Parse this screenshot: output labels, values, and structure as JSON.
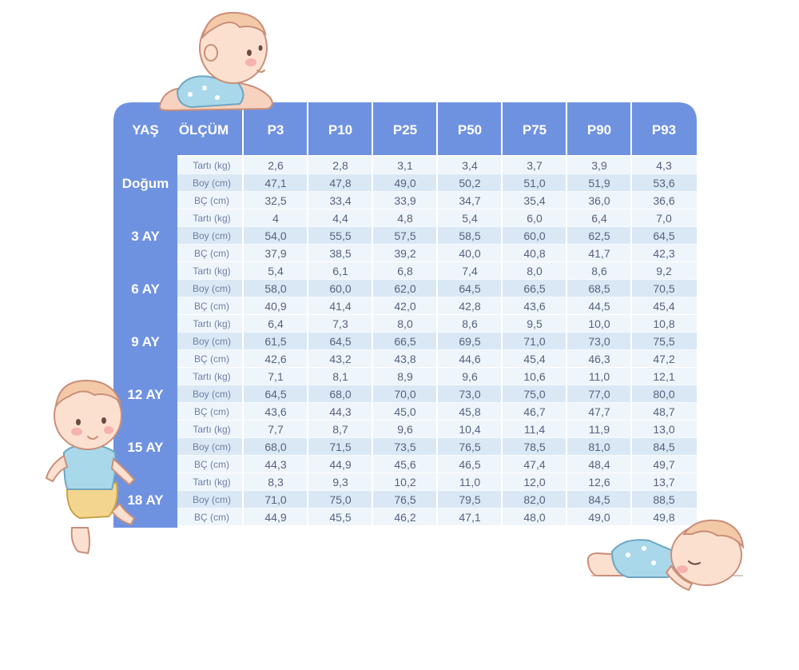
{
  "chart_data": {
    "type": "table",
    "header": {
      "age": "YAŞ",
      "measure": "ÖLÇÜM",
      "percentiles": [
        "P3",
        "P10",
        "P25",
        "P50",
        "P75",
        "P90",
        "P93"
      ]
    },
    "groups": [
      {
        "age": "Doğum",
        "rows": [
          {
            "label": "Tartı (kg)",
            "values": [
              "2,6",
              "2,8",
              "3,1",
              "3,4",
              "3,7",
              "3,9",
              "4,3"
            ]
          },
          {
            "label": "Boy (cm)",
            "values": [
              "47,1",
              "47,8",
              "49,0",
              "50,2",
              "51,0",
              "51,9",
              "53,6"
            ]
          },
          {
            "label": "BÇ (cm)",
            "values": [
              "32,5",
              "33,4",
              "33,9",
              "34,7",
              "35,4",
              "36,0",
              "36,6"
            ]
          }
        ]
      },
      {
        "age": "3 AY",
        "rows": [
          {
            "label": "Tartı (kg)",
            "values": [
              "4",
              "4,4",
              "4,8",
              "5,4",
              "6,0",
              "6,4",
              "7,0"
            ]
          },
          {
            "label": "Boy (cm)",
            "values": [
              "54,0",
              "55,5",
              "57,5",
              "58,5",
              "60,0",
              "62,5",
              "64,5"
            ]
          },
          {
            "label": "BÇ (cm)",
            "values": [
              "37,9",
              "38,5",
              "39,2",
              "40,0",
              "40,8",
              "41,7",
              "42,3"
            ]
          }
        ]
      },
      {
        "age": "6 AY",
        "rows": [
          {
            "label": "Tartı (kg)",
            "values": [
              "5,4",
              "6,1",
              "6,8",
              "7,4",
              "8,0",
              "8,6",
              "9,2"
            ]
          },
          {
            "label": "Boy (cm)",
            "values": [
              "58,0",
              "60,0",
              "62,0",
              "64,5",
              "66,5",
              "68,5",
              "70,5"
            ]
          },
          {
            "label": "BÇ (cm)",
            "values": [
              "40,9",
              "41,4",
              "42,0",
              "42,8",
              "43,6",
              "44,5",
              "45,4"
            ]
          }
        ]
      },
      {
        "age": "9 AY",
        "rows": [
          {
            "label": "Tartı (kg)",
            "values": [
              "6,4",
              "7,3",
              "8,0",
              "8,6",
              "9,5",
              "10,0",
              "10,8"
            ]
          },
          {
            "label": "Boy (cm)",
            "values": [
              "61,5",
              "64,5",
              "66,5",
              "69,5",
              "71,0",
              "73,0",
              "75,5"
            ]
          },
          {
            "label": "BÇ (cm)",
            "values": [
              "42,6",
              "43,2",
              "43,8",
              "44,6",
              "45,4",
              "46,3",
              "47,2"
            ]
          }
        ]
      },
      {
        "age": "12 AY",
        "rows": [
          {
            "label": "Tartı (kg)",
            "values": [
              "7,1",
              "8,1",
              "8,9",
              "9,6",
              "10,6",
              "11,0",
              "12,1"
            ]
          },
          {
            "label": "Boy (cm)",
            "values": [
              "64,5",
              "68,0",
              "70,0",
              "73,0",
              "75,0",
              "77,0",
              "80,0"
            ]
          },
          {
            "label": "BÇ (cm)",
            "values": [
              "43,6",
              "44,3",
              "45,0",
              "45,8",
              "46,7",
              "47,7",
              "48,7"
            ]
          }
        ]
      },
      {
        "age": "15 AY",
        "rows": [
          {
            "label": "Tartı (kg)",
            "values": [
              "7,7",
              "8,7",
              "9,6",
              "10,4",
              "11,4",
              "11,9",
              "13,0"
            ]
          },
          {
            "label": "Boy (cm)",
            "values": [
              "68,0",
              "71,5",
              "73,5",
              "76,5",
              "78,5",
              "81,0",
              "84,5"
            ]
          },
          {
            "label": "BÇ (cm)",
            "values": [
              "44,3",
              "44,9",
              "45,6",
              "46,5",
              "47,4",
              "48,4",
              "49,7"
            ]
          }
        ]
      },
      {
        "age": "18 AY",
        "rows": [
          {
            "label": "Tartı (kg)",
            "values": [
              "8,3",
              "9,3",
              "10,2",
              "11,0",
              "12,0",
              "12,6",
              "13,7"
            ]
          },
          {
            "label": "Boy (cm)",
            "values": [
              "71,0",
              "75,0",
              "76,5",
              "79,5",
              "82,0",
              "84,5",
              "88,5"
            ]
          },
          {
            "label": "BÇ (cm)",
            "values": [
              "44,9",
              "45,5",
              "46,2",
              "47,1",
              "48,0",
              "49,0",
              "49,8"
            ]
          }
        ]
      }
    ]
  },
  "colors": {
    "header_blue": "#6f92e0",
    "row_light": "#eef5fb",
    "row_dark": "#dae8f5",
    "cell_border": "#ffffff",
    "value_text": "#56627f",
    "measure_text": "#6f7ea6"
  },
  "illustrations": [
    "crawling-baby-illustration",
    "standing-baby-illustration",
    "sleeping-baby-illustration"
  ]
}
